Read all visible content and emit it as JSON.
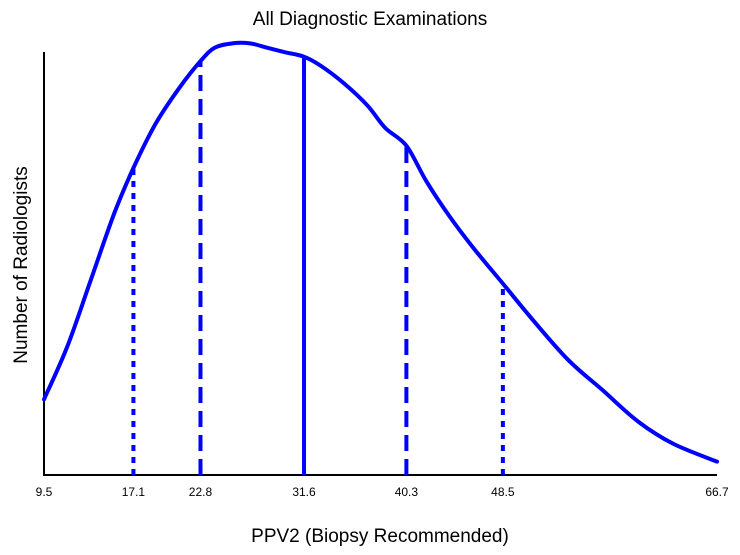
{
  "chart_data": {
    "type": "line",
    "title": "All Diagnostic Examinations",
    "xlabel": "PPV2 (Biopsy Recommended)",
    "ylabel": "Number of Radiologists",
    "xlim": [
      9.5,
      66.7
    ],
    "ylim": [
      0,
      1
    ],
    "x_ticks": [
      "9.5",
      "17.1",
      "22.8",
      "31.6",
      "40.3",
      "48.5",
      "66.7"
    ],
    "series": [
      {
        "color": "#0000ff",
        "x": [
          9.5,
          11.5,
          13.5,
          15.5,
          17.1,
          19,
          21,
          22.8,
          24,
          25.5,
          27,
          28.5,
          30,
          31.6,
          33,
          35,
          37,
          38.5,
          40.3,
          42,
          44,
          46,
          48.5,
          51,
          54,
          57,
          60,
          63,
          66.7
        ],
        "values": [
          0.17,
          0.29,
          0.44,
          0.59,
          0.69,
          0.79,
          0.87,
          0.93,
          0.96,
          0.97,
          0.97,
          0.96,
          0.95,
          0.94,
          0.92,
          0.88,
          0.83,
          0.78,
          0.74,
          0.66,
          0.58,
          0.51,
          0.43,
          0.35,
          0.26,
          0.19,
          0.12,
          0.07,
          0.03
        ]
      }
    ],
    "markers": [
      {
        "x": 17.1,
        "y": 0.69,
        "style": "dotted"
      },
      {
        "x": 22.8,
        "y": 0.93,
        "style": "dashed"
      },
      {
        "x": 31.6,
        "y": 0.94,
        "style": "solid"
      },
      {
        "x": 40.3,
        "y": 0.74,
        "style": "dashed"
      },
      {
        "x": 48.5,
        "y": 0.43,
        "style": "dotted"
      }
    ]
  }
}
